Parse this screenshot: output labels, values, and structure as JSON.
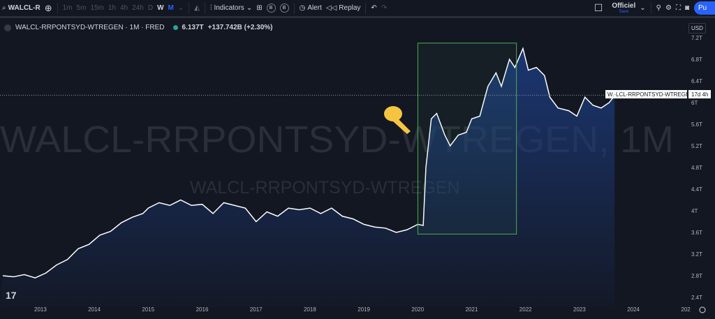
{
  "toolbar": {
    "symbol": "WALCL-R",
    "intervals": [
      "1m",
      "5m",
      "15m",
      "1h",
      "4h",
      "24h",
      "D",
      "W",
      "M"
    ],
    "active_interval": "M",
    "indicators": "Indicators",
    "badges": [
      "B",
      "B"
    ],
    "alert": "Alert",
    "replay": "Replay",
    "layout_name": "Officiel",
    "layout_status": "Save",
    "publish": "Pu"
  },
  "legend": {
    "title": "WALCL-RRPONTSYD-WTREGEN · 1M · FRED",
    "value": "6.137T",
    "change": "+137.742B (+2.30%)"
  },
  "currency": "USD",
  "watermark": {
    "main": "WALCL-RRPONTSYD-WTREGEN, 1M",
    "sub": "WALCL-RRPONTSYD-WTREGEN"
  },
  "price_label": {
    "name": "W.·LCL-RRPONTSYD-WTREGEN",
    "countdown": "17d 4h"
  },
  "colors": {
    "line": "#ffffff",
    "area": "#1c3a7a",
    "box": "#4caf50",
    "accent": "#2962ff",
    "bg": "#131722"
  },
  "chart_data": {
    "type": "area",
    "ylim": [
      2.4,
      7.2
    ],
    "yticks": [
      "7.2T",
      "6.8T",
      "6.4T",
      "6T",
      "5.6T",
      "5.2T",
      "4.8T",
      "4.4T",
      "4T",
      "3.6T",
      "3.2T",
      "2.8T",
      "2.4T"
    ],
    "ytick_values": [
      7.2,
      6.8,
      6.4,
      6,
      5.6,
      5.2,
      4.8,
      4.4,
      4,
      3.6,
      3.2,
      2.8,
      2.4
    ],
    "xticks": [
      "2013",
      "2014",
      "2015",
      "2016",
      "2017",
      "2018",
      "2019",
      "2020",
      "2021",
      "2022",
      "2023",
      "2024",
      "202"
    ],
    "x": [
      2012.3,
      2012.5,
      2012.7,
      2012.9,
      2013.1,
      2013.3,
      2013.5,
      2013.7,
      2013.9,
      2014.1,
      2014.3,
      2014.5,
      2014.7,
      2014.9,
      2015.0,
      2015.2,
      2015.4,
      2015.6,
      2015.8,
      2016.0,
      2016.2,
      2016.4,
      2016.6,
      2016.8,
      2017.0,
      2017.2,
      2017.4,
      2017.6,
      2017.8,
      2018.0,
      2018.2,
      2018.4,
      2018.6,
      2018.8,
      2019.0,
      2019.2,
      2019.4,
      2019.6,
      2019.8,
      2020.0,
      2020.1,
      2020.15,
      2020.25,
      2020.35,
      2020.5,
      2020.6,
      2020.75,
      2020.9,
      2021.0,
      2021.15,
      2021.3,
      2021.45,
      2021.55,
      2021.7,
      2021.8,
      2021.95,
      2022.05,
      2022.2,
      2022.35,
      2022.45,
      2022.6,
      2022.8,
      2022.95,
      2023.1,
      2023.25,
      2023.4,
      2023.55,
      2023.65
    ],
    "y": [
      2.8,
      2.78,
      2.82,
      2.76,
      2.85,
      3.0,
      3.1,
      3.3,
      3.38,
      3.55,
      3.62,
      3.78,
      3.88,
      3.95,
      4.05,
      4.15,
      4.1,
      4.2,
      4.1,
      4.12,
      3.95,
      4.15,
      4.1,
      4.05,
      3.8,
      3.98,
      3.9,
      4.05,
      4.02,
      4.05,
      3.95,
      4.05,
      3.9,
      3.85,
      3.75,
      3.7,
      3.68,
      3.6,
      3.65,
      3.75,
      3.73,
      4.8,
      5.7,
      5.8,
      5.4,
      5.2,
      5.4,
      5.45,
      5.7,
      5.75,
      6.3,
      6.55,
      6.3,
      6.8,
      6.65,
      7.0,
      6.6,
      6.65,
      6.5,
      6.1,
      5.9,
      5.85,
      5.75,
      6.1,
      5.95,
      5.9,
      6.0,
      6.13
    ],
    "last_value": 6.137,
    "annotation_box": {
      "x": [
        2020.0,
        2021.83
      ],
      "y": [
        3.57,
        7.1
      ]
    }
  }
}
